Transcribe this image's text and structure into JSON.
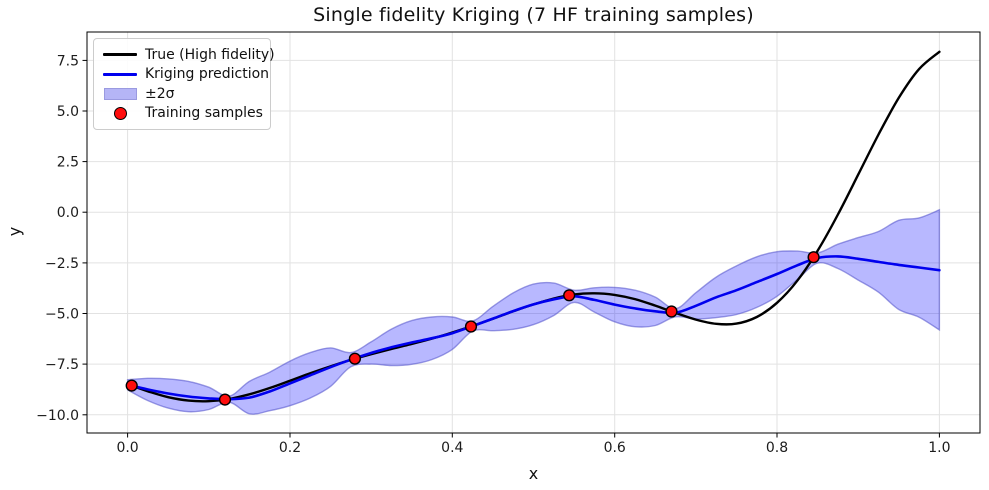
{
  "figure": {
    "title": "Single fidelity Kriging (7 HF training samples)",
    "xlabel": "x",
    "ylabel": "y"
  },
  "legend": {
    "location": "upper left",
    "items": [
      {
        "label": "True (High fidelity)",
        "type": "line",
        "color": "#000000",
        "edge": "#000000"
      },
      {
        "label": "Kriging prediction",
        "type": "line",
        "color": "#0000ee",
        "edge": "#0000ee"
      },
      {
        "label": "±2σ",
        "type": "patch",
        "color": "#b5b5f6",
        "fill": "#b5b5f6",
        "edge": "#9a9ae0"
      },
      {
        "label": "Training samples",
        "type": "marker",
        "color": "#ff0d0d",
        "edge": "#000000"
      }
    ]
  },
  "chart_data": {
    "type": "line",
    "title": "Single fidelity Kriging (7 HF training samples)",
    "xlabel": "x",
    "ylabel": "y",
    "xlim": [
      -0.05,
      1.05
    ],
    "ylim": [
      -10.9,
      8.9
    ],
    "grid": true,
    "grid_color": "#e2e2e2",
    "x_ticks": {
      "values": [
        0.0,
        0.2,
        0.4,
        0.6,
        0.8,
        1.0
      ],
      "labels": [
        "0.0",
        "0.2",
        "0.4",
        "0.6",
        "0.8",
        "1.0"
      ]
    },
    "y_ticks": {
      "values": [
        7.5,
        5.0,
        2.5,
        0.0,
        -2.5,
        -5.0,
        -7.5,
        -10.0
      ],
      "labels": [
        "7.5",
        "5.0",
        "2.5",
        "0.0",
        "−2.5",
        "−5.0",
        "−7.5",
        "−10.0"
      ]
    },
    "x": [
      0.0,
      0.025,
      0.05,
      0.075,
      0.1,
      0.125,
      0.15,
      0.175,
      0.2,
      0.225,
      0.25,
      0.275,
      0.3,
      0.325,
      0.35,
      0.375,
      0.4,
      0.425,
      0.45,
      0.475,
      0.5,
      0.525,
      0.55,
      0.575,
      0.6,
      0.625,
      0.65,
      0.675,
      0.7,
      0.725,
      0.75,
      0.775,
      0.8,
      0.825,
      0.85,
      0.875,
      0.9,
      0.925,
      0.95,
      0.975,
      1.0
    ],
    "series": [
      {
        "name": "True (High fidelity)",
        "color": "#000000",
        "width": 2.4,
        "values": [
          -8.49,
          -8.84,
          -9.13,
          -9.3,
          -9.33,
          -9.22,
          -8.99,
          -8.68,
          -8.32,
          -7.95,
          -7.61,
          -7.29,
          -7.01,
          -6.75,
          -6.5,
          -6.24,
          -5.94,
          -5.61,
          -5.26,
          -4.89,
          -4.55,
          -4.26,
          -4.06,
          -4.0,
          -4.08,
          -4.29,
          -4.61,
          -4.97,
          -5.3,
          -5.51,
          -5.5,
          -5.17,
          -4.47,
          -3.38,
          -1.9,
          -0.11,
          1.86,
          3.84,
          5.65,
          7.07,
          7.92
        ]
      },
      {
        "name": "Kriging prediction",
        "color": "#0000ee",
        "width": 2.6,
        "values": [
          -8.52,
          -8.75,
          -8.95,
          -9.1,
          -9.19,
          -9.23,
          -9.15,
          -8.85,
          -8.45,
          -8.05,
          -7.65,
          -7.28,
          -6.95,
          -6.67,
          -6.43,
          -6.22,
          -5.97,
          -5.62,
          -5.25,
          -4.88,
          -4.55,
          -4.3,
          -4.15,
          -4.33,
          -4.56,
          -4.75,
          -4.89,
          -4.96,
          -4.62,
          -4.2,
          -3.85,
          -3.45,
          -3.05,
          -2.62,
          -2.26,
          -2.18,
          -2.3,
          -2.45,
          -2.6,
          -2.73,
          -2.86
        ]
      }
    ],
    "band": {
      "name": "±2σ",
      "fill": "#0000ff",
      "fill_opacity": 0.28,
      "edge": "#5050c8",
      "edge_opacity": 0.55,
      "upper": [
        -8.27,
        -8.2,
        -8.23,
        -8.35,
        -8.64,
        -9.08,
        -8.35,
        -7.9,
        -7.35,
        -6.93,
        -6.7,
        -6.93,
        -6.4,
        -5.77,
        -5.35,
        -5.17,
        -5.17,
        -5.37,
        -4.65,
        -3.98,
        -3.55,
        -3.5,
        -3.85,
        -3.73,
        -3.71,
        -3.85,
        -4.19,
        -4.76,
        -3.97,
        -3.2,
        -2.65,
        -2.2,
        -1.95,
        -1.92,
        -2.01,
        -1.58,
        -1.25,
        -0.95,
        -0.4,
        -0.28,
        0.12
      ],
      "lower": [
        -8.77,
        -9.3,
        -9.67,
        -9.85,
        -9.74,
        -9.38,
        -9.95,
        -9.8,
        -9.55,
        -9.17,
        -8.6,
        -7.63,
        -7.5,
        -7.57,
        -7.51,
        -7.27,
        -6.77,
        -5.87,
        -5.85,
        -5.78,
        -5.55,
        -5.1,
        -4.45,
        -4.93,
        -5.41,
        -5.65,
        -5.59,
        -5.16,
        -5.27,
        -5.2,
        -5.05,
        -4.7,
        -4.15,
        -3.32,
        -2.51,
        -2.78,
        -3.35,
        -3.95,
        -4.8,
        -5.18,
        -5.81
      ]
    },
    "training_samples": {
      "name": "Training samples",
      "color": "#ff0d0d",
      "edge": "#000000",
      "radius": 5.4,
      "x": [
        0.005,
        0.12,
        0.28,
        0.423,
        0.544,
        0.67,
        0.845
      ],
      "y": [
        -8.56,
        -9.25,
        -7.23,
        -5.64,
        -4.1,
        -4.9,
        -2.22
      ]
    }
  }
}
